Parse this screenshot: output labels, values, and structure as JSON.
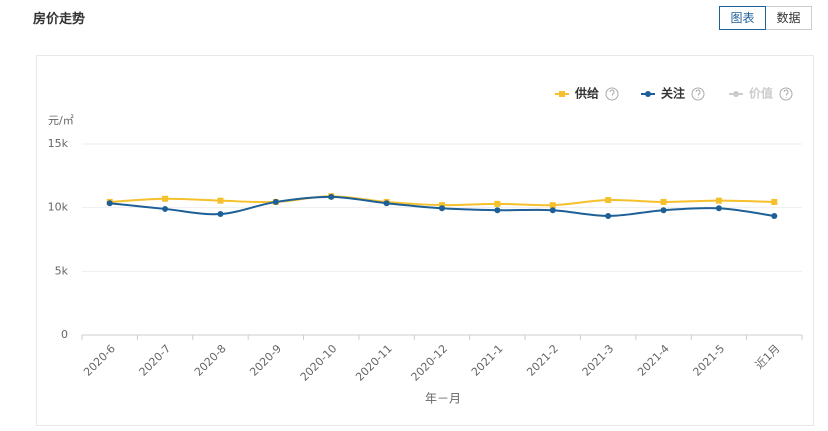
{
  "header": {
    "title": "房价走势",
    "tabs": [
      "图表",
      "数据"
    ]
  },
  "chart_data": {
    "type": "line",
    "y_unit": "元/㎡",
    "x_label": "年－月",
    "categories": [
      "2020-6",
      "2020-7",
      "2020-8",
      "2020-9",
      "2020-10",
      "2020-11",
      "2020-12",
      "2021-1",
      "2021-2",
      "2021-3",
      "2021-4",
      "2021-5",
      "近1月"
    ],
    "series": [
      {
        "name": "供给",
        "color": "#f5c02c",
        "marker": "square",
        "values": [
          10450,
          10700,
          10550,
          10450,
          10900,
          10450,
          10200,
          10300,
          10200,
          10600,
          10450,
          10550,
          10450
        ]
      },
      {
        "name": "关注",
        "color": "#1d5f97",
        "marker": "circle",
        "values": [
          10350,
          9900,
          9500,
          10450,
          10850,
          10350,
          9950,
          9800,
          9800,
          9350,
          9800,
          9950,
          9350
        ]
      },
      {
        "name": "价值",
        "color": "#cccccc",
        "marker": "circle",
        "visible": false,
        "values": [
          null,
          null,
          null,
          null,
          null,
          null,
          null,
          null,
          null,
          null,
          null,
          null,
          null
        ]
      }
    ],
    "ylim": [
      0,
      15000
    ],
    "yticks": [
      0,
      {
        "value": 5000,
        "label": "5k"
      },
      {
        "value": 10000,
        "label": "10k"
      },
      {
        "value": 15000,
        "label": "15k"
      }
    ],
    "grid": true,
    "legend": "top-right"
  }
}
